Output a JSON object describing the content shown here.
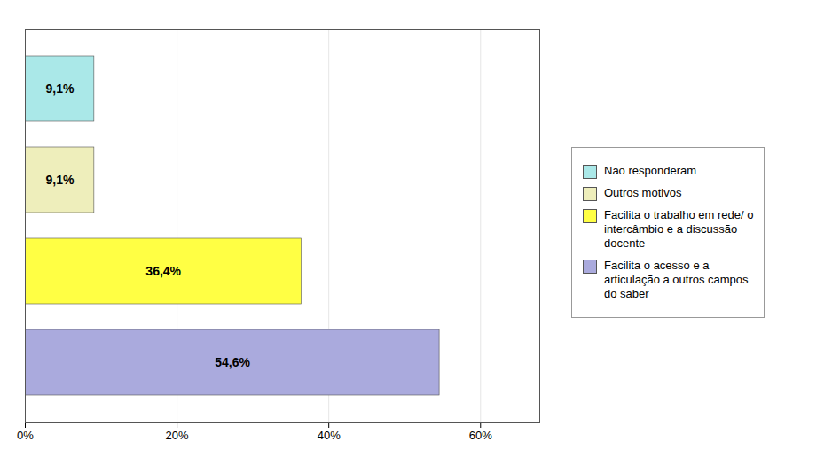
{
  "chart_data": {
    "type": "bar",
    "orientation": "horizontal",
    "categories": [
      "Facilita o acesso e a\narticulação a outros campos\ndo saber",
      "Facilita o trabalho em rede/ o\nintercâmbio e a discussão\ndocente",
      "Outros motivos",
      "Não responderam"
    ],
    "values": [
      54.6,
      36.4,
      9.1,
      9.1
    ],
    "value_labels": [
      "54,6%",
      "36,4%",
      "9,1%",
      "9,1%"
    ],
    "data_labels": true,
    "colors": [
      "#aaaadd",
      "#ffff44",
      "#eeeebb",
      "#aae8e8"
    ],
    "xlim": [
      0,
      67.8
    ],
    "xticks": [
      {
        "value": 0,
        "label": "0%"
      },
      {
        "value": 20,
        "label": "20%"
      },
      {
        "value": 40,
        "label": "40%"
      },
      {
        "value": 60,
        "label": "60%"
      }
    ],
    "grid": true,
    "legend": "right",
    "tick_labels": "x"
  }
}
